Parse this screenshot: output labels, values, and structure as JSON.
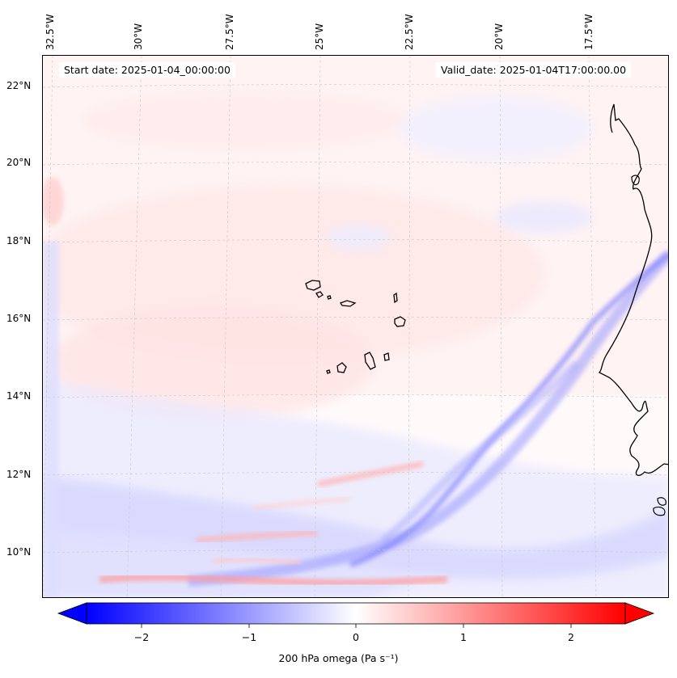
{
  "map": {
    "variable": "200 hPa omega",
    "units": "Pa s⁻¹",
    "colorbar_label": "200 hPa omega (Pa s⁻¹)",
    "colorbar_ticks": [
      "−2",
      "−1",
      "0",
      "1",
      "2"
    ],
    "colorbar_range": [
      -2.5,
      2.5
    ],
    "colormap": "bwr",
    "start_date_label": "Start date: 2025-01-04_00:00:00",
    "valid_date_label": "Valid_date: 2025-01-04T17:00:00.00",
    "lon_labels": [
      "32.5°W",
      "30°W",
      "27.5°W",
      "25°W",
      "22.5°W",
      "20°W",
      "17.5°W"
    ],
    "lat_labels": [
      "22°N",
      "20°N",
      "18°N",
      "16°N",
      "14°N",
      "12°N",
      "10°N"
    ],
    "region": "Cape Verde Islands and West African coast",
    "colors": {
      "negative": "#0000ff",
      "zero": "#ffffff",
      "positive": "#ff0000",
      "coast": "#000000"
    }
  }
}
